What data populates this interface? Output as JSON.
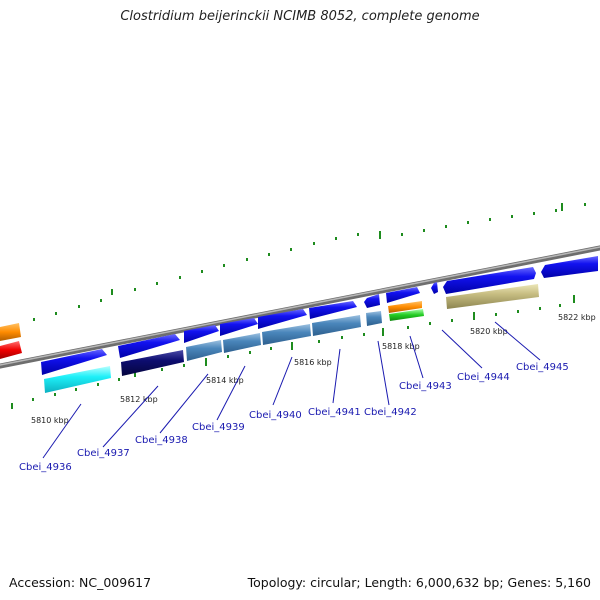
{
  "title": "Clostridium beijerinckii NCIMB 8052, complete genome",
  "footer": {
    "accession": "Accession: NC_009617",
    "summary": "Topology: circular; Length: 6,000,632 bp; Genes: 5,160"
  },
  "tick_labels": [
    "5810 kbp",
    "5812 kbp",
    "5814 kbp",
    "5816 kbp",
    "5818 kbp",
    "5820 kbp",
    "5822 kbp"
  ],
  "gene_labels": [
    "Cbei_4936",
    "Cbei_4937",
    "Cbei_4938",
    "Cbei_4939",
    "Cbei_4940",
    "Cbei_4941",
    "Cbei_4942",
    "Cbei_4943",
    "Cbei_4944",
    "Cbei_4945"
  ],
  "colors": {
    "backbone": "#8a8a8a",
    "forward_gene": "#1a1aee",
    "tick": "#1e8c1e",
    "label": "#1a1ab0"
  }
}
